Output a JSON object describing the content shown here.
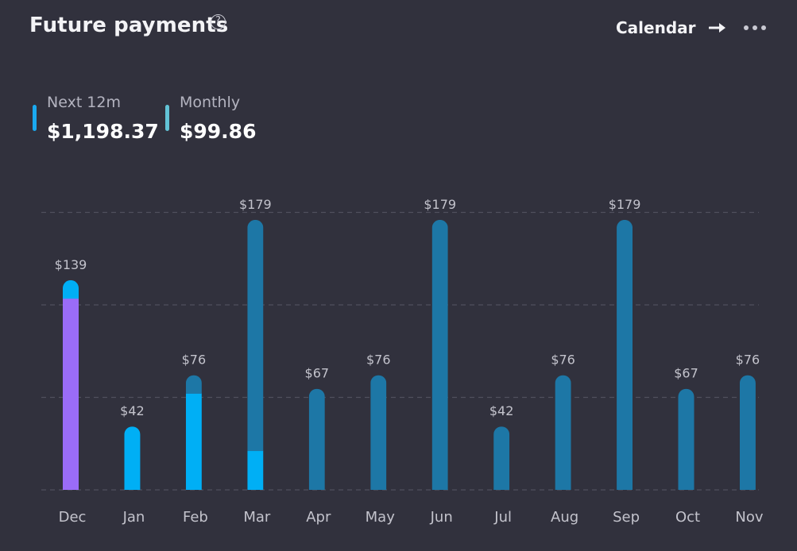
{
  "header": {
    "title": "Future payments",
    "help_icon": "?",
    "calendar_label": "Calendar",
    "arrow_icon": "arrow-right-icon",
    "more_icon": "more-horizontal-icon"
  },
  "summary": [
    {
      "label": "Next 12m",
      "value": "$1,198.37",
      "color": "#1aa9f0"
    },
    {
      "label": "Monthly",
      "value": "$99.86",
      "color": "#62c3d6"
    }
  ],
  "colors": {
    "background": "#31313d",
    "scheduled": "#1d77a6",
    "paid": "#00aff5",
    "highlight": "#9a6cf7",
    "grid": "#50505e",
    "label": "#c3c3cc"
  },
  "chart_data": {
    "type": "bar",
    "categories": [
      "Dec",
      "Jan",
      "Feb",
      "Mar",
      "Apr",
      "May",
      "Jun",
      "Jul",
      "Aug",
      "Sep",
      "Oct",
      "Nov"
    ],
    "values": [
      139,
      42,
      76,
      179,
      67,
      76,
      179,
      42,
      76,
      179,
      67,
      76
    ],
    "value_labels": [
      "$139",
      "$42",
      "$76",
      "$179",
      "$67",
      "$76",
      "$179",
      "$42",
      "$76",
      "$179",
      "$67",
      "$76"
    ],
    "segments": [
      [
        {
          "value": 127,
          "color": "#9a6cf7"
        },
        {
          "value": 12,
          "color": "#00aff5"
        }
      ],
      [
        {
          "value": 42,
          "color": "#00aff5"
        }
      ],
      [
        {
          "value": 64,
          "color": "#00aff5"
        },
        {
          "value": 12,
          "color": "#1d77a6"
        }
      ],
      [
        {
          "value": 26,
          "color": "#00aff5"
        },
        {
          "value": 153,
          "color": "#1d77a6"
        }
      ],
      [
        {
          "value": 67,
          "color": "#1d77a6"
        }
      ],
      [
        {
          "value": 76,
          "color": "#1d77a6"
        }
      ],
      [
        {
          "value": 179,
          "color": "#1d77a6"
        }
      ],
      [
        {
          "value": 42,
          "color": "#1d77a6"
        }
      ],
      [
        {
          "value": 76,
          "color": "#1d77a6"
        }
      ],
      [
        {
          "value": 179,
          "color": "#1d77a6"
        }
      ],
      [
        {
          "value": 67,
          "color": "#1d77a6"
        }
      ],
      [
        {
          "value": 76,
          "color": "#1d77a6"
        }
      ]
    ],
    "ylim": [
      0,
      180
    ],
    "grid": true,
    "legend": "none"
  }
}
